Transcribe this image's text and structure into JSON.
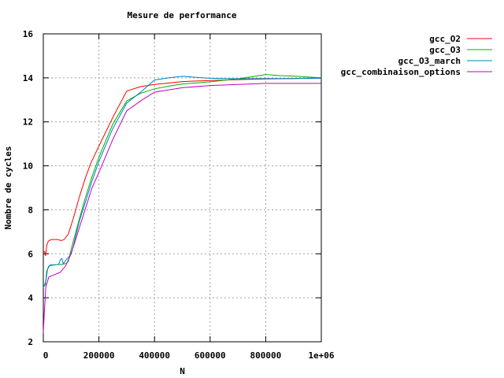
{
  "chart_data": {
    "type": "line",
    "title": "Mesure de performance",
    "xlabel": "N",
    "ylabel": "Nombre de cycles",
    "xlim": [
      0,
      1000000
    ],
    "ylim": [
      2,
      16
    ],
    "x_ticks": [
      0,
      200000,
      400000,
      600000,
      800000,
      1000000
    ],
    "x_tick_labels": [
      "0",
      "200000",
      "400000",
      "600000",
      "800000",
      "1e+06"
    ],
    "y_ticks": [
      2,
      4,
      6,
      8,
      10,
      12,
      14,
      16
    ],
    "y_tick_labels": [
      "2",
      "4",
      "6",
      "8",
      "10",
      "12",
      "14",
      "16"
    ],
    "grid": true,
    "legend_position": "top-right",
    "series": [
      {
        "name": "gcc_O2",
        "color": "#ff0000",
        "points": [
          [
            0,
            6.1
          ],
          [
            5000,
            6.1
          ],
          [
            8000,
            5.9
          ],
          [
            12000,
            6.35
          ],
          [
            15000,
            6.5
          ],
          [
            20000,
            6.6
          ],
          [
            30000,
            6.65
          ],
          [
            50000,
            6.65
          ],
          [
            65000,
            6.6
          ],
          [
            75000,
            6.65
          ],
          [
            90000,
            6.9
          ],
          [
            110000,
            7.7
          ],
          [
            130000,
            8.6
          ],
          [
            150000,
            9.4
          ],
          [
            170000,
            10.1
          ],
          [
            200000,
            10.9
          ],
          [
            250000,
            12.2
          ],
          [
            300000,
            13.4
          ],
          [
            350000,
            13.6
          ],
          [
            400000,
            13.7
          ],
          [
            500000,
            13.83
          ],
          [
            600000,
            13.88
          ],
          [
            700000,
            13.92
          ],
          [
            800000,
            13.95
          ],
          [
            900000,
            13.97
          ],
          [
            1000000,
            14.0
          ]
        ]
      },
      {
        "name": "gcc_O3",
        "color": "#00b000",
        "points": [
          [
            0,
            4.5
          ],
          [
            8000,
            4.6
          ],
          [
            12000,
            5.2
          ],
          [
            20000,
            5.45
          ],
          [
            40000,
            5.5
          ],
          [
            60000,
            5.52
          ],
          [
            80000,
            5.55
          ],
          [
            90000,
            5.65
          ],
          [
            100000,
            6.2
          ],
          [
            130000,
            7.6
          ],
          [
            150000,
            8.5
          ],
          [
            175000,
            9.5
          ],
          [
            200000,
            10.4
          ],
          [
            250000,
            11.9
          ],
          [
            300000,
            12.95
          ],
          [
            350000,
            13.3
          ],
          [
            400000,
            13.5
          ],
          [
            450000,
            13.62
          ],
          [
            500000,
            13.72
          ],
          [
            600000,
            13.82
          ],
          [
            700000,
            13.96
          ],
          [
            750000,
            14.05
          ],
          [
            800000,
            14.15
          ],
          [
            850000,
            14.1
          ],
          [
            900000,
            14.08
          ],
          [
            1000000,
            14.0
          ]
        ]
      },
      {
        "name": "gcc_O3_march",
        "color": "#0080c0",
        "points": [
          [
            0,
            4.45
          ],
          [
            5000,
            4.6
          ],
          [
            10000,
            4.8
          ],
          [
            15000,
            5.3
          ],
          [
            25000,
            5.5
          ],
          [
            40000,
            5.5
          ],
          [
            55000,
            5.52
          ],
          [
            62000,
            5.75
          ],
          [
            67000,
            5.78
          ],
          [
            72000,
            5.55
          ],
          [
            80000,
            5.7
          ],
          [
            95000,
            5.9
          ],
          [
            105000,
            6.2
          ],
          [
            130000,
            7.5
          ],
          [
            150000,
            8.3
          ],
          [
            175000,
            9.3
          ],
          [
            200000,
            10.2
          ],
          [
            250000,
            11.7
          ],
          [
            300000,
            12.85
          ],
          [
            350000,
            13.35
          ],
          [
            400000,
            13.9
          ],
          [
            450000,
            14.0
          ],
          [
            500000,
            14.07
          ],
          [
            550000,
            14.02
          ],
          [
            600000,
            13.98
          ],
          [
            700000,
            13.96
          ],
          [
            800000,
            13.97
          ],
          [
            900000,
            13.97
          ],
          [
            1000000,
            13.98
          ]
        ]
      },
      {
        "name": "gcc_combinaison_options",
        "color": "#c000c0",
        "points": [
          [
            0,
            2.4
          ],
          [
            3000,
            3.2
          ],
          [
            6000,
            3.8
          ],
          [
            9000,
            4.5
          ],
          [
            14000,
            4.7
          ],
          [
            20000,
            4.95
          ],
          [
            40000,
            5.05
          ],
          [
            60000,
            5.15
          ],
          [
            80000,
            5.45
          ],
          [
            100000,
            6.0
          ],
          [
            130000,
            7.2
          ],
          [
            150000,
            8.0
          ],
          [
            175000,
            9.0
          ],
          [
            200000,
            9.7
          ],
          [
            250000,
            11.2
          ],
          [
            300000,
            12.5
          ],
          [
            350000,
            12.95
          ],
          [
            400000,
            13.35
          ],
          [
            450000,
            13.45
          ],
          [
            500000,
            13.55
          ],
          [
            600000,
            13.65
          ],
          [
            700000,
            13.7
          ],
          [
            800000,
            13.75
          ],
          [
            900000,
            13.75
          ],
          [
            1000000,
            13.75
          ]
        ]
      }
    ]
  }
}
